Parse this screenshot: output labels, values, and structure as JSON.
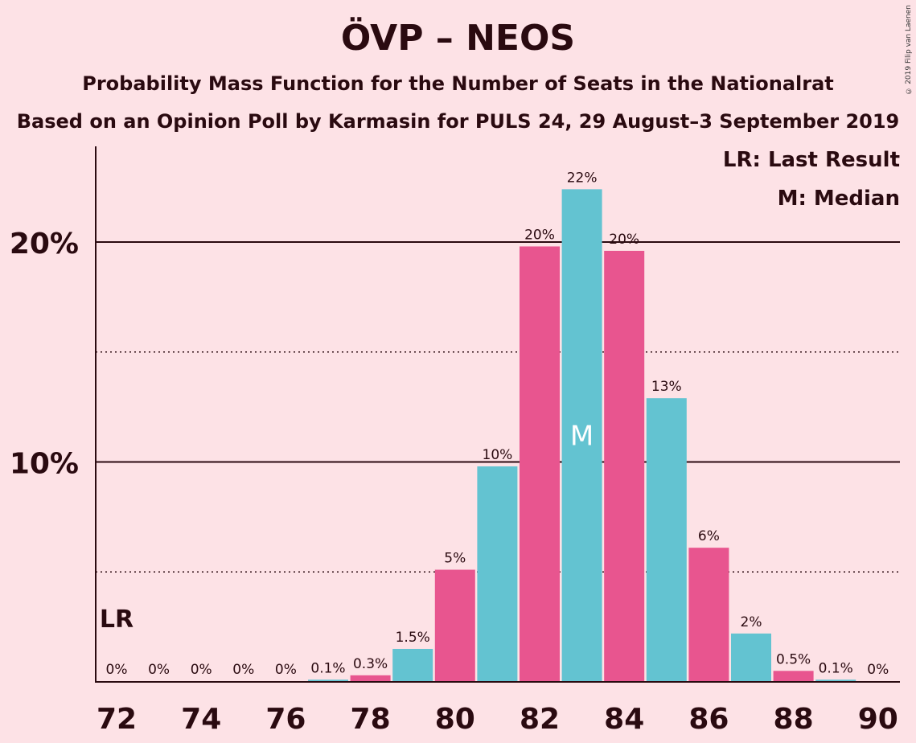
{
  "title": "ÖVP – NEOS",
  "subtitle1": "Probability Mass Function for the Number of Seats in the Nationalrat",
  "subtitle2": "Based on an Opinion Poll by Karmasin for PULS 24, 29 August–3 September 2019",
  "copyright": "© 2019 Filip van Laenen",
  "legend": {
    "lr": "LR: Last Result",
    "median": "M: Median"
  },
  "colors": {
    "teal": "#63c3d1",
    "pink": "#e8558f",
    "background": "#fde2e6",
    "text": "#2a0a10"
  },
  "chart_data": {
    "type": "bar",
    "x": [
      72,
      73,
      74,
      75,
      76,
      77,
      78,
      79,
      80,
      81,
      82,
      83,
      84,
      85,
      86,
      87,
      88,
      89,
      90
    ],
    "values": [
      0,
      0,
      0,
      0,
      0,
      0.1,
      0.3,
      1.5,
      5.1,
      9.8,
      19.8,
      22.4,
      19.6,
      12.9,
      6.1,
      2.2,
      0.5,
      0.1,
      0
    ],
    "data_labels": [
      "0%",
      "0%",
      "0%",
      "0%",
      "0%",
      "0.1%",
      "0.3%",
      "1.5%",
      "5%",
      "10%",
      "20%",
      "22%",
      "20%",
      "13%",
      "6%",
      "2%",
      "0.5%",
      "0.1%",
      "0%"
    ],
    "x_ticks": [
      72,
      74,
      76,
      78,
      80,
      82,
      84,
      86,
      88,
      90
    ],
    "y_ticks": [
      {
        "value": 10,
        "label": "10%"
      },
      {
        "value": 20,
        "label": "20%"
      }
    ],
    "y_minor_gridlines": [
      5,
      15
    ],
    "ylim": [
      0,
      24.3
    ],
    "last_result_seat": 72,
    "last_result_label": "LR",
    "median_seat": 83,
    "median_label": "M"
  }
}
